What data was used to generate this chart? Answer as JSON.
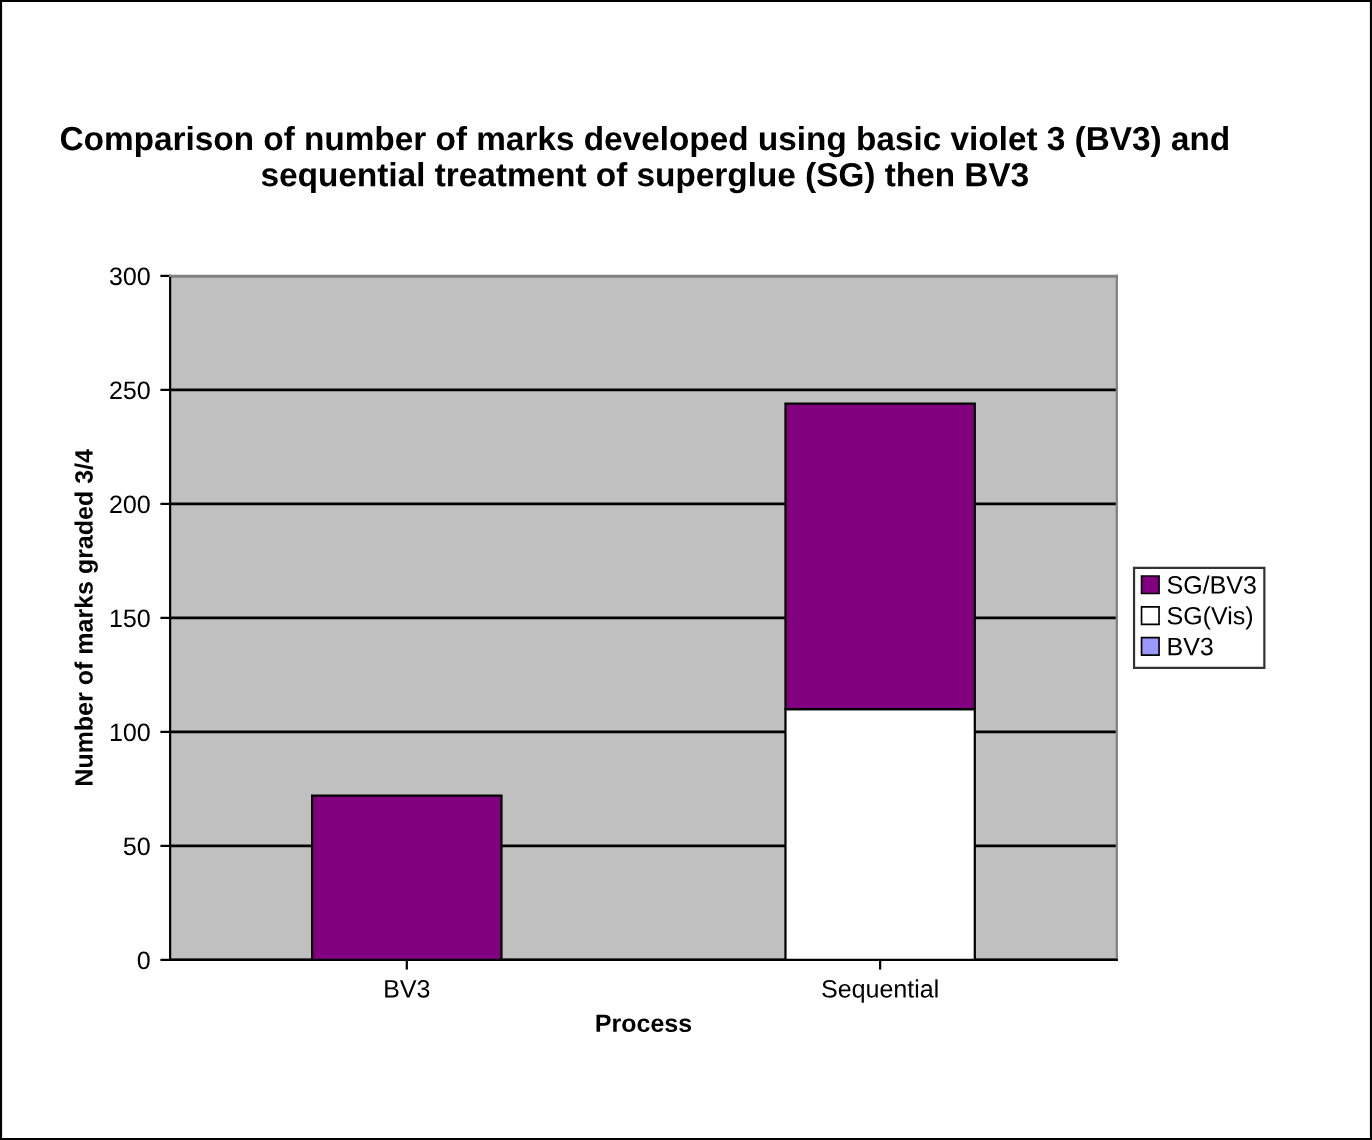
{
  "chart_data": {
    "type": "bar",
    "stacked": true,
    "title": "Comparison of number of marks developed using basic violet 3 (BV3) and sequential treatment of superglue (SG) then BV3",
    "xlabel": "Process",
    "ylabel": "Number of marks graded 3/4",
    "categories": [
      "BV3",
      "Sequential"
    ],
    "series": [
      {
        "name": "BV3",
        "color": "#9999ff",
        "values": [
          0,
          0
        ]
      },
      {
        "name": "SG(Vis)",
        "color": "#ffffff",
        "values": [
          0,
          110
        ]
      },
      {
        "name": "SG/BV3",
        "color": "#800080",
        "values": [
          72,
          134
        ]
      }
    ],
    "ylim": [
      0,
      300
    ],
    "yticks": [
      0,
      50,
      100,
      150,
      200,
      250,
      300
    ],
    "grid": "y",
    "legend": "right"
  }
}
